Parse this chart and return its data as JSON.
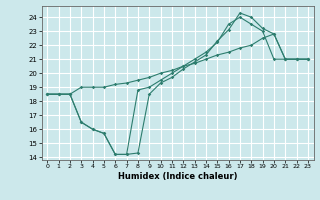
{
  "xlabel": "Humidex (Indice chaleur)",
  "bg_color": "#cce8eb",
  "grid_color": "#ffffff",
  "line_color": "#2d7d6e",
  "xlim": [
    -0.5,
    23.5
  ],
  "ylim": [
    13.8,
    24.8
  ],
  "xticks": [
    0,
    1,
    2,
    3,
    4,
    5,
    6,
    7,
    8,
    9,
    10,
    11,
    12,
    13,
    14,
    15,
    16,
    17,
    18,
    19,
    20,
    21,
    22,
    23
  ],
  "yticks": [
    14,
    15,
    16,
    17,
    18,
    19,
    20,
    21,
    22,
    23,
    24
  ],
  "series1": [
    [
      0,
      18.5
    ],
    [
      1,
      18.5
    ],
    [
      2,
      18.5
    ],
    [
      3,
      19.0
    ],
    [
      4,
      19.0
    ],
    [
      5,
      19.0
    ],
    [
      6,
      19.2
    ],
    [
      7,
      19.3
    ],
    [
      8,
      19.5
    ],
    [
      9,
      19.7
    ],
    [
      10,
      20.0
    ],
    [
      11,
      20.2
    ],
    [
      12,
      20.5
    ],
    [
      13,
      20.7
    ],
    [
      14,
      21.0
    ],
    [
      15,
      21.3
    ],
    [
      16,
      21.5
    ],
    [
      17,
      21.8
    ],
    [
      18,
      22.0
    ],
    [
      19,
      22.5
    ],
    [
      20,
      22.8
    ],
    [
      21,
      21.0
    ],
    [
      22,
      21.0
    ],
    [
      23,
      21.0
    ]
  ],
  "series2": [
    [
      0,
      18.5
    ],
    [
      1,
      18.5
    ],
    [
      2,
      18.5
    ],
    [
      3,
      16.5
    ],
    [
      4,
      16.0
    ],
    [
      5,
      15.7
    ],
    [
      6,
      14.2
    ],
    [
      7,
      14.2
    ],
    [
      8,
      14.3
    ],
    [
      9,
      18.5
    ],
    [
      10,
      19.3
    ],
    [
      11,
      19.7
    ],
    [
      12,
      20.3
    ],
    [
      13,
      20.8
    ],
    [
      14,
      21.3
    ],
    [
      15,
      22.3
    ],
    [
      16,
      23.1
    ],
    [
      17,
      24.3
    ],
    [
      18,
      24.0
    ],
    [
      19,
      23.2
    ],
    [
      20,
      22.8
    ],
    [
      21,
      21.0
    ],
    [
      22,
      21.0
    ],
    [
      23,
      21.0
    ]
  ],
  "series3": [
    [
      0,
      18.5
    ],
    [
      1,
      18.5
    ],
    [
      2,
      18.5
    ],
    [
      3,
      16.5
    ],
    [
      4,
      16.0
    ],
    [
      5,
      15.7
    ],
    [
      6,
      14.2
    ],
    [
      7,
      14.2
    ],
    [
      8,
      18.8
    ],
    [
      9,
      19.0
    ],
    [
      10,
      19.5
    ],
    [
      11,
      20.0
    ],
    [
      12,
      20.5
    ],
    [
      13,
      21.0
    ],
    [
      14,
      21.5
    ],
    [
      15,
      22.2
    ],
    [
      16,
      23.5
    ],
    [
      17,
      24.0
    ],
    [
      18,
      23.5
    ],
    [
      19,
      23.0
    ],
    [
      20,
      21.0
    ],
    [
      21,
      21.0
    ],
    [
      22,
      21.0
    ],
    [
      23,
      21.0
    ]
  ]
}
